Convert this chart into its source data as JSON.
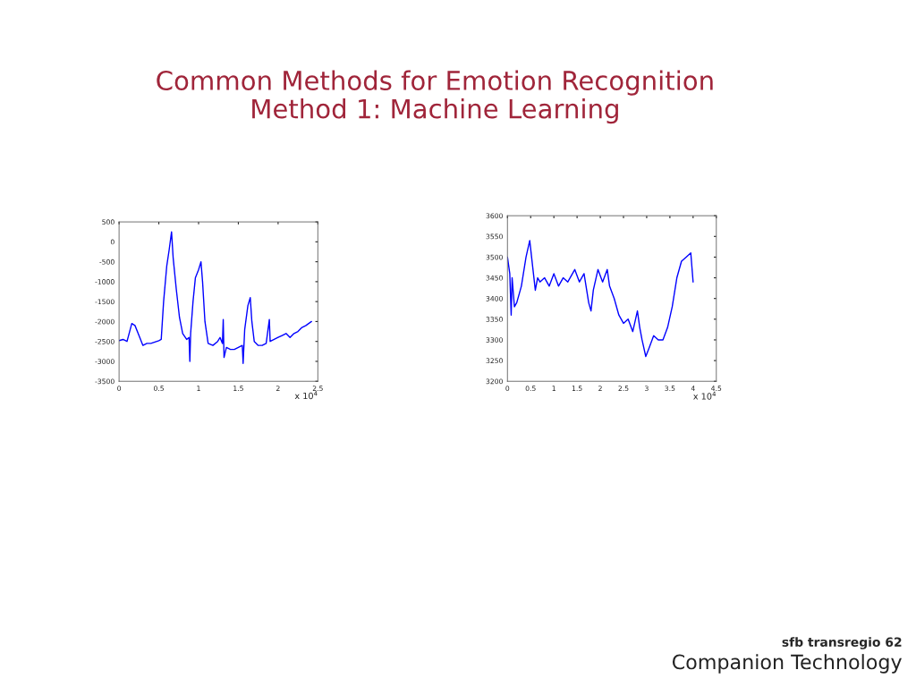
{
  "chart_data": [
    {
      "type": "line",
      "title": "Common Methods for Emotion Recognition\nMethod 1: Machine Learning",
      "annotations": [
        "x 10$^{4}$"
      ],
      "series": [
        {
          "color": "#0000ff",
          "x": [
            0,
            0.05,
            0.1,
            0.16,
            0.2,
            0.25,
            0.3,
            0.35,
            0.4,
            0.5,
            0.53,
            0.56,
            0.6,
            0.63,
            0.66,
            0.68,
            0.72,
            0.76,
            0.8,
            0.85,
            0.88,
            0.89,
            0.9,
            0.93,
            0.96,
            1.0,
            1.03,
            1.05,
            1.08,
            1.12,
            1.18,
            1.24,
            1.27,
            1.3,
            1.31,
            1.32,
            1.35,
            1.4,
            1.45,
            1.5,
            1.55,
            1.56,
            1.58,
            1.62,
            1.65,
            1.67,
            1.7,
            1.75,
            1.8,
            1.85,
            1.89,
            1.9,
            1.95,
            2.0,
            2.05,
            2.1,
            2.15,
            2.2,
            2.25,
            2.3,
            2.35,
            2.42
          ],
          "values": [
            -2480,
            -2450,
            -2500,
            -2050,
            -2100,
            -2350,
            -2600,
            -2550,
            -2550,
            -2480,
            -2450,
            -1500,
            -600,
            -200,
            250,
            -400,
            -1200,
            -1900,
            -2300,
            -2450,
            -2400,
            -3000,
            -2300,
            -1500,
            -900,
            -700,
            -500,
            -1000,
            -2000,
            -2550,
            -2600,
            -2500,
            -2400,
            -2550,
            -1950,
            -2900,
            -2650,
            -2700,
            -2700,
            -2650,
            -2600,
            -3050,
            -2200,
            -1600,
            -1400,
            -2000,
            -2500,
            -2600,
            -2600,
            -2550,
            -1950,
            -2500,
            -2450,
            -2400,
            -2350,
            -2300,
            -2400,
            -2300,
            -2250,
            -2150,
            -2100,
            -2000
          ]
        }
      ],
      "xlim": [
        0,
        2.5
      ],
      "xticks": [
        0,
        0.5,
        1,
        1.5,
        2,
        2.5
      ],
      "ylim": [
        -3500,
        500
      ],
      "yticks": [
        -3500,
        -3000,
        -2500,
        -2000,
        -1500,
        -1000,
        -500,
        0,
        500
      ],
      "grid": false,
      "legend": false
    },
    {
      "type": "line",
      "annotations": [
        "x 10$^{4}$",
        "sfb transregio 62",
        "Companion Technology"
      ],
      "series": [
        {
          "color": "#0000ff",
          "x": [
            0,
            0.05,
            0.08,
            0.1,
            0.15,
            0.2,
            0.3,
            0.4,
            0.48,
            0.55,
            0.6,
            0.65,
            0.7,
            0.8,
            0.9,
            1.0,
            1.1,
            1.2,
            1.3,
            1.45,
            1.55,
            1.65,
            1.75,
            1.8,
            1.85,
            1.95,
            2.05,
            2.15,
            2.2,
            2.3,
            2.4,
            2.5,
            2.6,
            2.7,
            2.8,
            2.85,
            2.9,
            2.98,
            3.05,
            3.15,
            3.25,
            3.35,
            3.45,
            3.55,
            3.65,
            3.75,
            3.85,
            3.95,
            4.0
          ],
          "values": [
            3500,
            3460,
            3360,
            3450,
            3380,
            3390,
            3430,
            3500,
            3540,
            3470,
            3420,
            3450,
            3440,
            3450,
            3430,
            3460,
            3430,
            3450,
            3440,
            3470,
            3440,
            3460,
            3390,
            3370,
            3420,
            3470,
            3440,
            3470,
            3430,
            3400,
            3360,
            3340,
            3350,
            3320,
            3370,
            3330,
            3300,
            3260,
            3280,
            3310,
            3300,
            3300,
            3330,
            3380,
            3450,
            3490,
            3500,
            3510,
            3440
          ]
        }
      ],
      "xlim": [
        0,
        4.5
      ],
      "xticks": [
        0,
        0.5,
        1,
        1.5,
        2,
        2.5,
        3,
        3.5,
        4,
        4.5
      ],
      "ylim": [
        3200,
        3600
      ],
      "yticks": [
        3200,
        3250,
        3300,
        3350,
        3400,
        3450,
        3500,
        3550,
        3600
      ],
      "grid": false,
      "legend": false
    }
  ]
}
